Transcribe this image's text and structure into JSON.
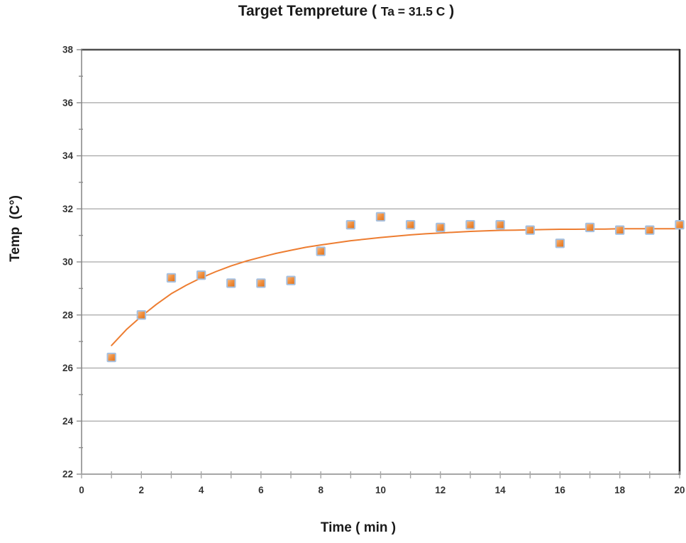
{
  "figure": {
    "title_prefix": "Target Tempreture ( ",
    "title_param": "Ta = 31.5 C",
    "title_suffix": " )"
  },
  "chart_data": {
    "type": "scatter",
    "title": "Target Tempreture ( Ta = 31.5 C )",
    "xlabel": "Time ( min )",
    "ylabel": "Temp  (C°)",
    "xlim": [
      0,
      20
    ],
    "ylim": [
      22,
      38
    ],
    "x_major_ticks": [
      0,
      2,
      4,
      6,
      8,
      10,
      12,
      14,
      16,
      18,
      20
    ],
    "x_minor_step": 1,
    "y_major_ticks": [
      22,
      24,
      26,
      28,
      30,
      32,
      34,
      36,
      38
    ],
    "y_minor_step": 1,
    "grid": "horizontal-major-only",
    "legend": "none",
    "series": [
      {
        "name": "measured-temperature",
        "type": "scatter",
        "marker": "square",
        "x": [
          1,
          2,
          3,
          4,
          5,
          6,
          7,
          8,
          9,
          10,
          11,
          12,
          13,
          14,
          15,
          16,
          17,
          18,
          19,
          20
        ],
        "y": [
          26.4,
          28.0,
          29.4,
          29.5,
          29.2,
          29.2,
          29.3,
          30.4,
          31.4,
          31.7,
          31.4,
          31.3,
          31.4,
          31.4,
          31.2,
          30.7,
          31.3,
          31.2,
          31.2,
          31.4
        ]
      },
      {
        "name": "fitted-trend-curve",
        "type": "line",
        "x": [
          1,
          1.5,
          2,
          2.5,
          3,
          3.5,
          4,
          4.5,
          5,
          5.5,
          6,
          6.5,
          7,
          7.5,
          8,
          8.5,
          9,
          9.5,
          10,
          10.5,
          11,
          11.5,
          12,
          12.5,
          13,
          13.5,
          14,
          14.5,
          15,
          15.5,
          16,
          16.5,
          17,
          17.5,
          18,
          18.5,
          19,
          19.5,
          20
        ],
        "y": [
          26.85,
          27.45,
          27.95,
          28.4,
          28.8,
          29.12,
          29.4,
          29.64,
          29.85,
          30.03,
          30.18,
          30.32,
          30.44,
          30.55,
          30.64,
          30.72,
          30.8,
          30.86,
          30.92,
          30.97,
          31.02,
          31.06,
          31.09,
          31.12,
          31.15,
          31.17,
          31.19,
          31.2,
          31.21,
          31.22,
          31.23,
          31.23,
          31.24,
          31.24,
          31.25,
          31.25,
          31.25,
          31.25,
          31.25
        ]
      }
    ],
    "colors": {
      "curve": "#ED7D31",
      "marker_fill_light": "#F8BE8C",
      "marker_fill_mid": "#F09243",
      "marker_fill_dark": "#E06E14",
      "marker_border": "#A5C0E0",
      "gridline": "#a6a6a6",
      "axis_left": "#8c8c8c",
      "axis_bottom": "#a6a6a6",
      "border_top": "#4f4f4f",
      "border_right": "#262626",
      "tick_label": "#333333",
      "text": "#1a1a1a"
    }
  }
}
